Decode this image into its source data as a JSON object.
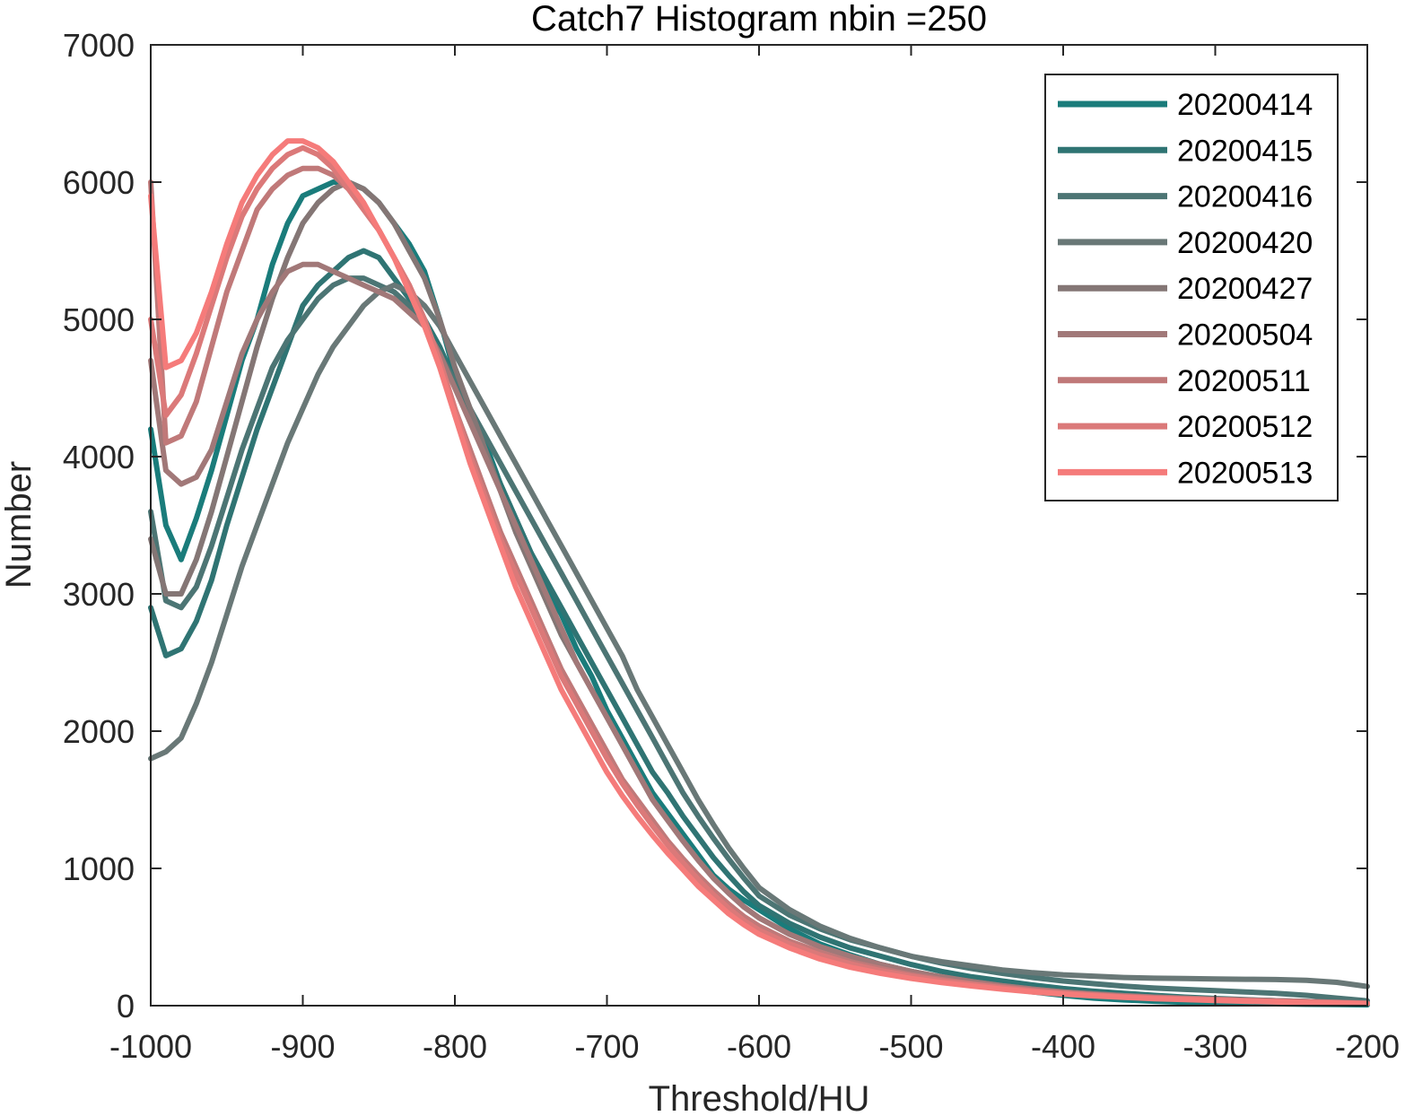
{
  "chart_data": {
    "type": "line",
    "title": "Catch7  Histogram nbin =250",
    "xlabel": "Threshold/HU",
    "ylabel": "Number",
    "xlim": [
      -1000,
      -200
    ],
    "ylim": [
      0,
      7000
    ],
    "xticks": [
      -1000,
      -900,
      -800,
      -700,
      -600,
      -500,
      -400,
      -300,
      -200
    ],
    "yticks": [
      0,
      1000,
      2000,
      3000,
      4000,
      5000,
      6000,
      7000
    ],
    "grid": false,
    "legend_position": "top-right",
    "x": [
      -1000,
      -990,
      -980,
      -970,
      -960,
      -950,
      -940,
      -930,
      -920,
      -910,
      -900,
      -890,
      -880,
      -870,
      -860,
      -850,
      -840,
      -830,
      -820,
      -810,
      -800,
      -790,
      -780,
      -770,
      -760,
      -750,
      -740,
      -730,
      -720,
      -710,
      -700,
      -690,
      -680,
      -670,
      -660,
      -650,
      -640,
      -630,
      -620,
      -610,
      -600,
      -580,
      -560,
      -540,
      -520,
      -500,
      -480,
      -460,
      -440,
      -420,
      -400,
      -380,
      -360,
      -340,
      -320,
      -300,
      -280,
      -260,
      -240,
      -220,
      -200
    ],
    "series": [
      {
        "name": "20200414",
        "color": "#1A7C7B",
        "values": [
          4200,
          3500,
          3250,
          3550,
          3900,
          4300,
          4700,
          5000,
          5400,
          5700,
          5900,
          5950,
          6000,
          6000,
          5950,
          5850,
          5700,
          5550,
          5350,
          5000,
          4600,
          4350,
          4100,
          3800,
          3550,
          3300,
          3050,
          2850,
          2600,
          2400,
          2150,
          1950,
          1750,
          1550,
          1400,
          1250,
          1100,
          950,
          850,
          770,
          700,
          560,
          450,
          370,
          300,
          250,
          205,
          165,
          130,
          100,
          75,
          55,
          42,
          32,
          25,
          20,
          16,
          13,
          10,
          8,
          6
        ]
      },
      {
        "name": "20200415",
        "color": "#2F7473",
        "values": [
          2900,
          2550,
          2600,
          2800,
          3100,
          3500,
          3850,
          4200,
          4500,
          4800,
          5100,
          5250,
          5350,
          5450,
          5500,
          5450,
          5300,
          5150,
          5000,
          4800,
          4550,
          4300,
          4050,
          3800,
          3550,
          3300,
          3100,
          2900,
          2700,
          2500,
          2300,
          2100,
          1900,
          1700,
          1550,
          1380,
          1230,
          1080,
          950,
          830,
          730,
          600,
          500,
          420,
          360,
          300,
          250,
          210,
          180,
          150,
          125,
          105,
          90,
          75,
          62,
          52,
          44,
          36,
          30,
          24,
          18
        ]
      },
      {
        "name": "20200416",
        "color": "#4C7574",
        "values": [
          3600,
          2950,
          2900,
          3050,
          3350,
          3700,
          4050,
          4350,
          4650,
          4850,
          5000,
          5150,
          5250,
          5300,
          5300,
          5250,
          5200,
          5100,
          4950,
          4750,
          4550,
          4350,
          4150,
          3950,
          3750,
          3550,
          3350,
          3150,
          2950,
          2750,
          2550,
          2350,
          2150,
          1950,
          1750,
          1550,
          1380,
          1220,
          1070,
          930,
          800,
          660,
          560,
          480,
          420,
          360,
          310,
          270,
          235,
          205,
          180,
          160,
          142,
          128,
          118,
          110,
          100,
          90,
          75,
          55,
          35
        ]
      },
      {
        "name": "20200420",
        "color": "#697877",
        "values": [
          1800,
          1850,
          1950,
          2200,
          2500,
          2850,
          3200,
          3500,
          3800,
          4100,
          4350,
          4600,
          4800,
          4950,
          5100,
          5200,
          5250,
          5200,
          5100,
          4950,
          4750,
          4550,
          4350,
          4150,
          3950,
          3750,
          3550,
          3350,
          3150,
          2950,
          2750,
          2550,
          2300,
          2100,
          1900,
          1700,
          1500,
          1320,
          1150,
          1000,
          860,
          700,
          580,
          490,
          420,
          360,
          320,
          290,
          260,
          240,
          225,
          215,
          205,
          200,
          198,
          195,
          192,
          190,
          185,
          170,
          140
        ]
      },
      {
        "name": "20200427",
        "color": "#847675",
        "values": [
          3400,
          3000,
          3000,
          3250,
          3600,
          4000,
          4400,
          4800,
          5150,
          5450,
          5700,
          5850,
          5950,
          6000,
          5950,
          5850,
          5700,
          5500,
          5300,
          5000,
          4650,
          4350,
          4050,
          3750,
          3450,
          3200,
          2950,
          2700,
          2500,
          2300,
          2100,
          1900,
          1700,
          1500,
          1350,
          1200,
          1060,
          930,
          820,
          720,
          640,
          520,
          430,
          360,
          300,
          250,
          210,
          175,
          145,
          120,
          100,
          85,
          72,
          62,
          55,
          48,
          42,
          36,
          30,
          24,
          18
        ]
      },
      {
        "name": "20200504",
        "color": "#A17878",
        "values": [
          4700,
          3900,
          3800,
          3850,
          4050,
          4400,
          4750,
          5000,
          5200,
          5350,
          5400,
          5400,
          5350,
          5300,
          5250,
          5200,
          5150,
          5050,
          4950,
          4750,
          4500,
          4250,
          4000,
          3750,
          3500,
          3250,
          3000,
          2750,
          2500,
          2300,
          2100,
          1900,
          1700,
          1500,
          1350,
          1200,
          1060,
          930,
          820,
          720,
          640,
          520,
          430,
          360,
          300,
          250,
          210,
          175,
          145,
          120,
          100,
          85,
          72,
          62,
          55,
          48,
          42,
          36,
          30,
          24,
          18
        ]
      },
      {
        "name": "20200511",
        "color": "#C07979",
        "values": [
          6000,
          4100,
          4150,
          4400,
          4800,
          5200,
          5500,
          5800,
          5950,
          6050,
          6100,
          6100,
          6050,
          5950,
          5800,
          5650,
          5450,
          5250,
          5000,
          4700,
          4350,
          4050,
          3750,
          3450,
          3200,
          2950,
          2700,
          2450,
          2250,
          2050,
          1850,
          1650,
          1500,
          1350,
          1200,
          1070,
          950,
          840,
          740,
          650,
          580,
          470,
          390,
          320,
          270,
          225,
          190,
          160,
          135,
          112,
          94,
          80,
          68,
          58,
          50,
          44,
          38,
          32,
          27,
          22,
          17
        ]
      },
      {
        "name": "20200512",
        "color": "#DB7979",
        "values": [
          5000,
          4300,
          4450,
          4750,
          5100,
          5450,
          5750,
          5950,
          6100,
          6200,
          6250,
          6200,
          6100,
          5950,
          5800,
          5650,
          5450,
          5250,
          5000,
          4700,
          4350,
          4000,
          3700,
          3400,
          3150,
          2900,
          2650,
          2400,
          2200,
          2000,
          1800,
          1620,
          1460,
          1310,
          1170,
          1040,
          920,
          810,
          710,
          620,
          550,
          450,
          370,
          305,
          255,
          215,
          182,
          155,
          130,
          108,
          90,
          76,
          64,
          55,
          47,
          41,
          35,
          30,
          25,
          20,
          15
        ]
      },
      {
        "name": "20200513",
        "color": "#F57B7A",
        "values": [
          5900,
          4650,
          4700,
          4900,
          5200,
          5550,
          5850,
          6050,
          6200,
          6300,
          6300,
          6250,
          6150,
          6000,
          5850,
          5650,
          5450,
          5200,
          4950,
          4650,
          4300,
          3950,
          3650,
          3350,
          3050,
          2800,
          2550,
          2300,
          2100,
          1900,
          1700,
          1530,
          1380,
          1240,
          1110,
          990,
          870,
          770,
          670,
          590,
          520,
          420,
          340,
          280,
          235,
          198,
          168,
          143,
          120,
          100,
          84,
          71,
          60,
          51,
          44,
          38,
          32,
          27,
          23,
          19,
          15
        ]
      }
    ]
  }
}
